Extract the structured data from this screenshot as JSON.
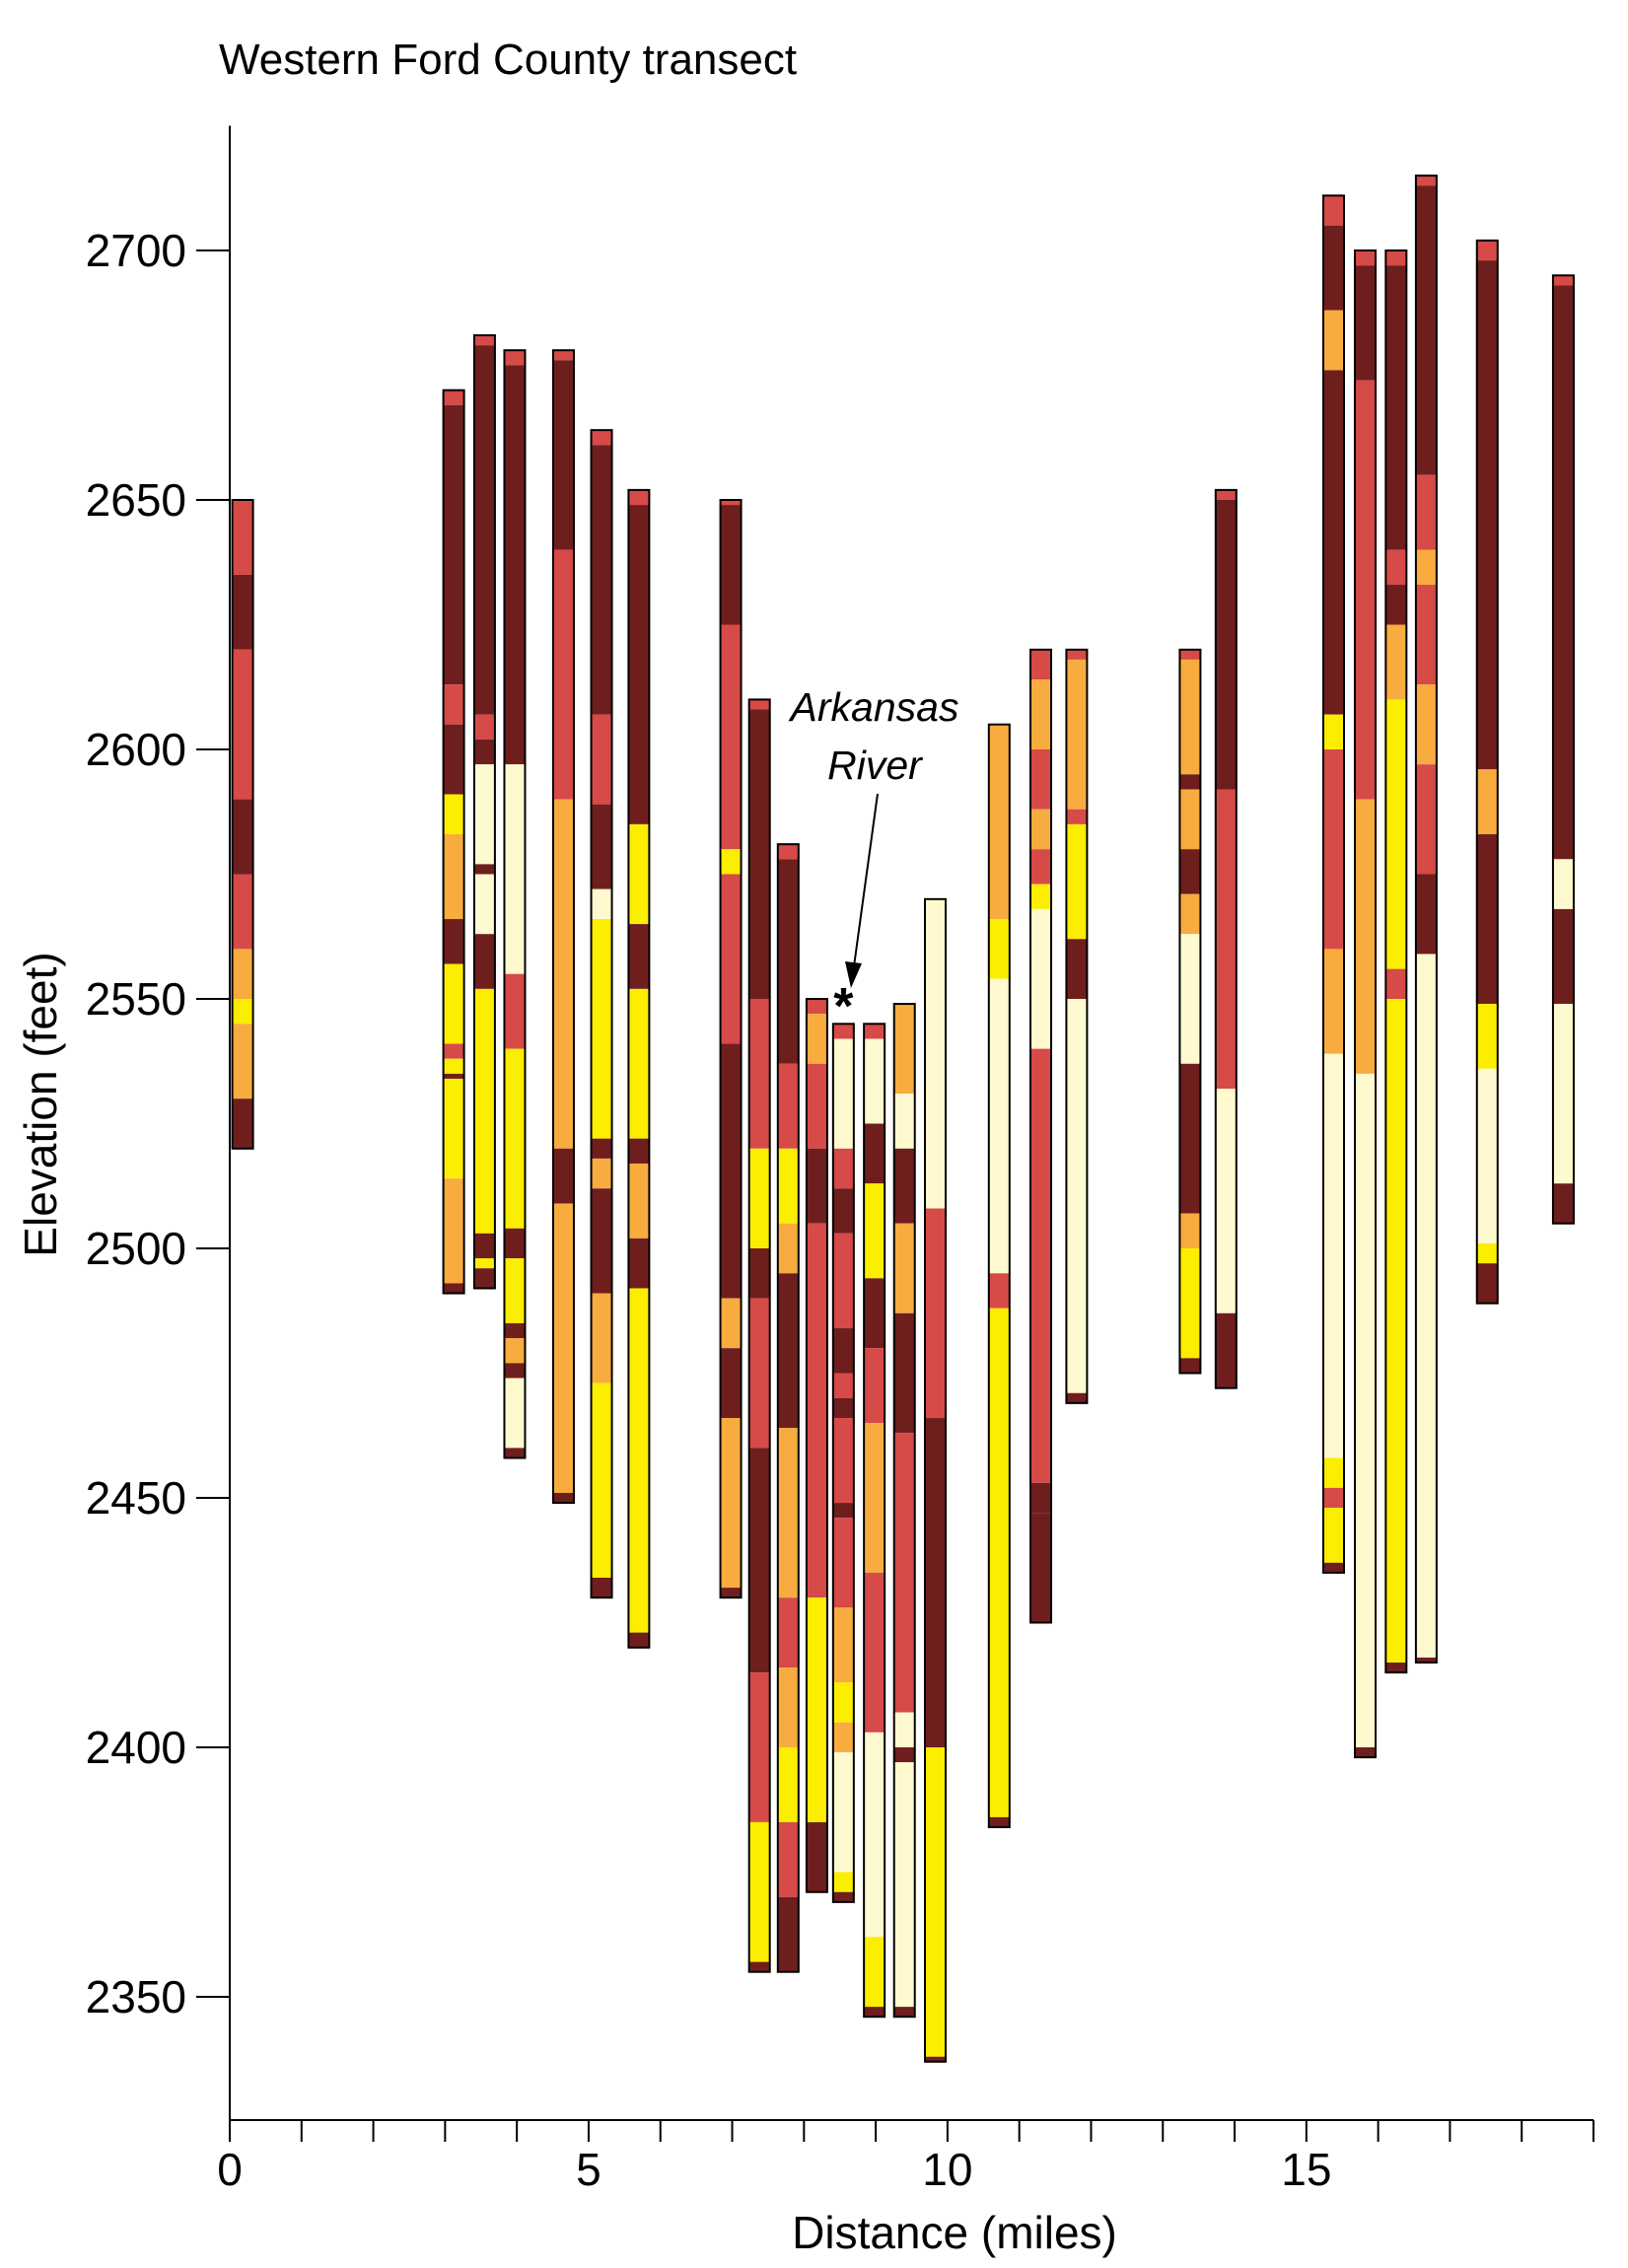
{
  "chart_data": {
    "type": "stacked-column-transect",
    "title": "Western Ford County transect",
    "xlabel": "Distance (miles)",
    "ylabel": "Elevation (feet)",
    "xlim": [
      0,
      19
    ],
    "ylim": [
      2325,
      2725
    ],
    "xticks_major": [
      0,
      5,
      10,
      15
    ],
    "xticks_minor": [
      1,
      2,
      3,
      4,
      6,
      7,
      8,
      9,
      11,
      12,
      13,
      14,
      16,
      17,
      18,
      19
    ],
    "yticks": [
      2350,
      2400,
      2450,
      2500,
      2550,
      2600,
      2650,
      2700
    ],
    "grid": false,
    "legend": "none",
    "colors": {
      "D": "#6f1e1e",
      "R": "#d64a48",
      "O": "#f8ab3e",
      "Y": "#fbee00",
      "C": "#fff9cf"
    },
    "annotation": {
      "text_line1": "Arkansas",
      "text_line2": "River",
      "marker": "*",
      "x": 8.55,
      "y": 2551
    },
    "wells": [
      {
        "x": 0.18,
        "top": 2650,
        "layers": [
          [
            "R",
            2635
          ],
          [
            "D",
            2620
          ],
          [
            "R",
            2590
          ],
          [
            "D",
            2575
          ],
          [
            "R",
            2560
          ],
          [
            "O",
            2550
          ],
          [
            "Y",
            2545
          ],
          [
            "O",
            2530
          ],
          [
            "D",
            2520
          ]
        ]
      },
      {
        "x": 3.12,
        "top": 2672,
        "layers": [
          [
            "R",
            2669
          ],
          [
            "D",
            2613
          ],
          [
            "R",
            2605
          ],
          [
            "D",
            2591
          ],
          [
            "Y",
            2583
          ],
          [
            "O",
            2566
          ],
          [
            "D",
            2557
          ],
          [
            "Y",
            2541
          ],
          [
            "R",
            2538
          ],
          [
            "Y",
            2535
          ],
          [
            "D",
            2534
          ],
          [
            "Y",
            2514
          ],
          [
            "O",
            2493
          ],
          [
            "D",
            2491
          ]
        ]
      },
      {
        "x": 3.55,
        "top": 2683,
        "layers": [
          [
            "R",
            2681
          ],
          [
            "D",
            2607
          ],
          [
            "R",
            2602
          ],
          [
            "D",
            2597
          ],
          [
            "C",
            2577
          ],
          [
            "D",
            2575
          ],
          [
            "C",
            2563
          ],
          [
            "D",
            2552
          ],
          [
            "Y",
            2503
          ],
          [
            "D",
            2498
          ],
          [
            "Y",
            2496
          ],
          [
            "D",
            2492
          ]
        ]
      },
      {
        "x": 3.97,
        "top": 2680,
        "layers": [
          [
            "R",
            2677
          ],
          [
            "D",
            2597
          ],
          [
            "C",
            2555
          ],
          [
            "R",
            2540
          ],
          [
            "Y",
            2504
          ],
          [
            "D",
            2498
          ],
          [
            "Y",
            2485
          ],
          [
            "D",
            2482
          ],
          [
            "O",
            2477
          ],
          [
            "D",
            2474
          ],
          [
            "C",
            2460
          ],
          [
            "D",
            2458
          ]
        ]
      },
      {
        "x": 4.65,
        "top": 2680,
        "layers": [
          [
            "R",
            2678
          ],
          [
            "D",
            2640
          ],
          [
            "R",
            2590
          ],
          [
            "O",
            2520
          ],
          [
            "D",
            2509
          ],
          [
            "O",
            2451
          ],
          [
            "D",
            2449
          ]
        ]
      },
      {
        "x": 5.18,
        "top": 2664,
        "layers": [
          [
            "R",
            2661
          ],
          [
            "D",
            2607
          ],
          [
            "R",
            2589
          ],
          [
            "D",
            2572
          ],
          [
            "C",
            2566
          ],
          [
            "Y",
            2522
          ],
          [
            "D",
            2518
          ],
          [
            "O",
            2512
          ],
          [
            "D",
            2491
          ],
          [
            "O",
            2473
          ],
          [
            "Y",
            2434
          ],
          [
            "D",
            2430
          ]
        ]
      },
      {
        "x": 5.7,
        "top": 2652,
        "layers": [
          [
            "R",
            2649
          ],
          [
            "D",
            2585
          ],
          [
            "Y",
            2565
          ],
          [
            "D",
            2552
          ],
          [
            "Y",
            2522
          ],
          [
            "D",
            2517
          ],
          [
            "O",
            2502
          ],
          [
            "D",
            2492
          ],
          [
            "Y",
            2423
          ],
          [
            "D",
            2420
          ]
        ]
      },
      {
        "x": 6.98,
        "top": 2650,
        "layers": [
          [
            "R",
            2649
          ],
          [
            "D",
            2625
          ],
          [
            "R",
            2580
          ],
          [
            "Y",
            2575
          ],
          [
            "R",
            2541
          ],
          [
            "D",
            2490
          ],
          [
            "O",
            2480
          ],
          [
            "D",
            2466
          ],
          [
            "O",
            2432
          ],
          [
            "D",
            2430
          ]
        ]
      },
      {
        "x": 7.38,
        "top": 2610,
        "layers": [
          [
            "R",
            2608
          ],
          [
            "D",
            2550
          ],
          [
            "R",
            2520
          ],
          [
            "Y",
            2500
          ],
          [
            "D",
            2490
          ],
          [
            "R",
            2460
          ],
          [
            "D",
            2415
          ],
          [
            "R",
            2385
          ],
          [
            "Y",
            2357
          ],
          [
            "D",
            2355
          ]
        ]
      },
      {
        "x": 7.78,
        "top": 2581,
        "layers": [
          [
            "R",
            2578
          ],
          [
            "D",
            2537
          ],
          [
            "R",
            2520
          ],
          [
            "Y",
            2505
          ],
          [
            "O",
            2495
          ],
          [
            "D",
            2464
          ],
          [
            "O",
            2430
          ],
          [
            "R",
            2416
          ],
          [
            "O",
            2400
          ],
          [
            "Y",
            2385
          ],
          [
            "R",
            2370
          ],
          [
            "D",
            2355
          ]
        ]
      },
      {
        "x": 8.18,
        "top": 2550,
        "layers": [
          [
            "R",
            2547
          ],
          [
            "O",
            2537
          ],
          [
            "R",
            2520
          ],
          [
            "D",
            2505
          ],
          [
            "R",
            2430
          ],
          [
            "Y",
            2385
          ],
          [
            "D",
            2371
          ]
        ]
      },
      {
        "x": 8.55,
        "top": 2545,
        "layers": [
          [
            "R",
            2542
          ],
          [
            "C",
            2520
          ],
          [
            "R",
            2512
          ],
          [
            "D",
            2503
          ],
          [
            "R",
            2484
          ],
          [
            "D",
            2475
          ],
          [
            "R",
            2470
          ],
          [
            "D",
            2466
          ],
          [
            "R",
            2449
          ],
          [
            "D",
            2446
          ],
          [
            "R",
            2428
          ],
          [
            "O",
            2413
          ],
          [
            "Y",
            2405
          ],
          [
            "O",
            2399
          ],
          [
            "C",
            2375
          ],
          [
            "Y",
            2371
          ],
          [
            "D",
            2369
          ]
        ]
      },
      {
        "x": 8.98,
        "top": 2545,
        "layers": [
          [
            "R",
            2542
          ],
          [
            "C",
            2525
          ],
          [
            "D",
            2513
          ],
          [
            "Y",
            2494
          ],
          [
            "D",
            2480
          ],
          [
            "R",
            2465
          ],
          [
            "O",
            2435
          ],
          [
            "R",
            2403
          ],
          [
            "C",
            2362
          ],
          [
            "Y",
            2348
          ],
          [
            "D",
            2346
          ]
        ]
      },
      {
        "x": 9.4,
        "top": 2549,
        "layers": [
          [
            "O",
            2531
          ],
          [
            "C",
            2520
          ],
          [
            "D",
            2505
          ],
          [
            "O",
            2487
          ],
          [
            "D",
            2463
          ],
          [
            "R",
            2407
          ],
          [
            "C",
            2400
          ],
          [
            "D",
            2397
          ],
          [
            "C",
            2348
          ],
          [
            "D",
            2346
          ]
        ]
      },
      {
        "x": 9.83,
        "top": 2570,
        "layers": [
          [
            "C",
            2508
          ],
          [
            "R",
            2466
          ],
          [
            "D",
            2400
          ],
          [
            "Y",
            2338
          ],
          [
            "D",
            2337
          ]
        ]
      },
      {
        "x": 10.72,
        "top": 2605,
        "layers": [
          [
            "O",
            2566
          ],
          [
            "Y",
            2554
          ],
          [
            "C",
            2495
          ],
          [
            "R",
            2488
          ],
          [
            "Y",
            2386
          ],
          [
            "D",
            2384
          ]
        ]
      },
      {
        "x": 11.3,
        "top": 2620,
        "layers": [
          [
            "R",
            2614
          ],
          [
            "O",
            2600
          ],
          [
            "R",
            2588
          ],
          [
            "O",
            2580
          ],
          [
            "R",
            2573
          ],
          [
            "Y",
            2568
          ],
          [
            "C",
            2540
          ],
          [
            "R",
            2453
          ],
          [
            "D",
            2447
          ],
          [
            "D",
            2425
          ]
        ]
      },
      {
        "x": 11.8,
        "top": 2620,
        "layers": [
          [
            "R",
            2618
          ],
          [
            "O",
            2588
          ],
          [
            "R",
            2585
          ],
          [
            "Y",
            2562
          ],
          [
            "D",
            2550
          ],
          [
            "C",
            2471
          ],
          [
            "D",
            2469
          ]
        ]
      },
      {
        "x": 13.38,
        "top": 2620,
        "layers": [
          [
            "R",
            2618
          ],
          [
            "O",
            2595
          ],
          [
            "D",
            2592
          ],
          [
            "O",
            2580
          ],
          [
            "D",
            2571
          ],
          [
            "O",
            2563
          ],
          [
            "C",
            2537
          ],
          [
            "D",
            2507
          ],
          [
            "O",
            2500
          ],
          [
            "Y",
            2478
          ],
          [
            "D",
            2475
          ]
        ]
      },
      {
        "x": 13.88,
        "top": 2652,
        "layers": [
          [
            "R",
            2650
          ],
          [
            "D",
            2592
          ],
          [
            "R",
            2532
          ],
          [
            "C",
            2487
          ],
          [
            "D",
            2472
          ]
        ]
      },
      {
        "x": 15.38,
        "top": 2711,
        "layers": [
          [
            "R",
            2705
          ],
          [
            "D",
            2688
          ],
          [
            "O",
            2676
          ],
          [
            "D",
            2607
          ],
          [
            "Y",
            2600
          ],
          [
            "R",
            2560
          ],
          [
            "O",
            2539
          ],
          [
            "C",
            2458
          ],
          [
            "Y",
            2452
          ],
          [
            "R",
            2448
          ],
          [
            "Y",
            2437
          ],
          [
            "D",
            2435
          ]
        ]
      },
      {
        "x": 15.82,
        "top": 2700,
        "layers": [
          [
            "R",
            2697
          ],
          [
            "D",
            2674
          ],
          [
            "R",
            2590
          ],
          [
            "O",
            2535
          ],
          [
            "C",
            2400
          ],
          [
            "D",
            2398
          ]
        ]
      },
      {
        "x": 16.25,
        "top": 2700,
        "layers": [
          [
            "R",
            2697
          ],
          [
            "D",
            2640
          ],
          [
            "R",
            2633
          ],
          [
            "D",
            2625
          ],
          [
            "O",
            2610
          ],
          [
            "Y",
            2556
          ],
          [
            "R",
            2550
          ],
          [
            "Y",
            2417
          ],
          [
            "D",
            2415
          ]
        ]
      },
      {
        "x": 16.67,
        "top": 2715,
        "layers": [
          [
            "R",
            2713
          ],
          [
            "D",
            2655
          ],
          [
            "R",
            2640
          ],
          [
            "O",
            2633
          ],
          [
            "R",
            2613
          ],
          [
            "O",
            2597
          ],
          [
            "R",
            2575
          ],
          [
            "D",
            2559
          ],
          [
            "C",
            2418
          ],
          [
            "D",
            2417
          ]
        ]
      },
      {
        "x": 17.52,
        "top": 2702,
        "layers": [
          [
            "R",
            2698
          ],
          [
            "D",
            2596
          ],
          [
            "O",
            2583
          ],
          [
            "D",
            2549
          ],
          [
            "Y",
            2536
          ],
          [
            "C",
            2501
          ],
          [
            "Y",
            2497
          ],
          [
            "D",
            2489
          ]
        ]
      },
      {
        "x": 18.58,
        "top": 2695,
        "layers": [
          [
            "R",
            2693
          ],
          [
            "D",
            2578
          ],
          [
            "C",
            2568
          ],
          [
            "D",
            2549
          ],
          [
            "C",
            2513
          ],
          [
            "D",
            2505
          ]
        ]
      }
    ]
  }
}
